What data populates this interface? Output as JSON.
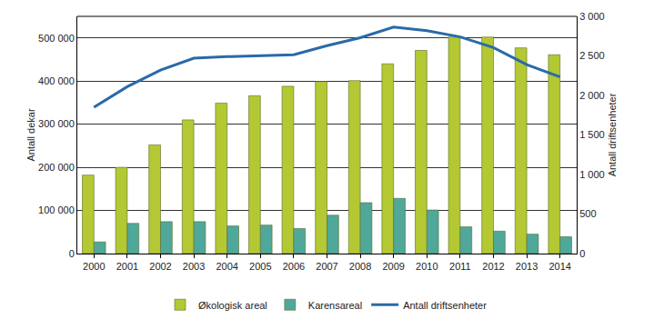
{
  "chart_data": {
    "type": "bar",
    "categories": [
      "2000",
      "2001",
      "2002",
      "2003",
      "2004",
      "2005",
      "2006",
      "2007",
      "2008",
      "2009",
      "2010",
      "2011",
      "2012",
      "2013",
      "2014"
    ],
    "series": [
      {
        "name": "Økologisk areal",
        "type": "bar",
        "color": "#b3c833",
        "values": [
          182000,
          200000,
          252000,
          310000,
          349000,
          366000,
          388000,
          399000,
          401000,
          440000,
          471000,
          502000,
          502000,
          477000,
          461000
        ]
      },
      {
        "name": "Karensareal",
        "type": "bar",
        "color": "#4fa89a",
        "values": [
          27000,
          70000,
          74000,
          74000,
          64000,
          66000,
          58000,
          89000,
          118000,
          128000,
          101000,
          62000,
          52000,
          45000,
          39000
        ]
      },
      {
        "name": "Antall driftsenheter",
        "type": "line",
        "axis": "y2",
        "color": "#2a6aa8",
        "values": [
          1850,
          2110,
          2320,
          2470,
          2490,
          2500,
          2515,
          2630,
          2730,
          2865,
          2820,
          2740,
          2605,
          2390,
          2235
        ]
      }
    ],
    "y_label": "Antall dekar",
    "y2_label": "Antall driftsenheter",
    "ylim": [
      0,
      550000
    ],
    "yticks": [
      0,
      {
        "value": 100000,
        "label": "100 000"
      },
      {
        "value": 200000,
        "label": "200 000"
      },
      {
        "value": 300000,
        "label": "300 000"
      },
      {
        "value": 400000,
        "label": "400 000"
      },
      {
        "value": 500000,
        "label": "500 000"
      }
    ],
    "y2lim": [
      0,
      3000
    ],
    "y2ticks": [
      0,
      500,
      {
        "value": 1000,
        "label": "1 000"
      },
      {
        "value": 1500,
        "label": "1 500"
      },
      {
        "value": 2000,
        "label": "2 000"
      },
      {
        "value": 2500,
        "label": "2 500"
      },
      {
        "value": 3000,
        "label": "3 000"
      }
    ],
    "grid": true,
    "legend": "bottom"
  }
}
